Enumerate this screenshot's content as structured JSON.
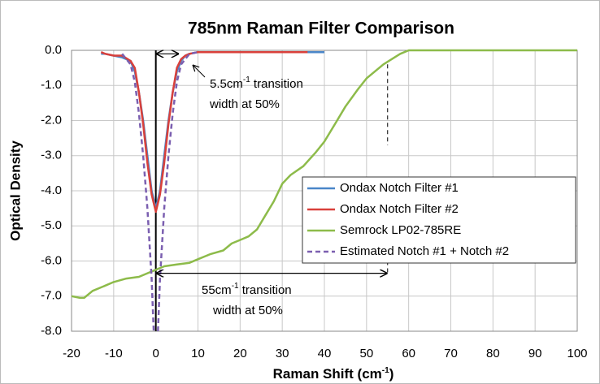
{
  "chart_data": {
    "type": "line",
    "title": "785nm Raman Filter Comparison",
    "x_label": {
      "before": "Raman Shift (cm",
      "sup": "-1",
      "after": ")"
    },
    "y_label": "Optical Density",
    "xlim": [
      -20,
      100
    ],
    "xticks": [
      -20,
      -10,
      0,
      10,
      20,
      30,
      40,
      50,
      60,
      70,
      80,
      90,
      100
    ],
    "ylim": [
      -8,
      0
    ],
    "yticks": [
      {
        "value": 0,
        "label": "0.0"
      },
      {
        "value": -1,
        "label": "-1.0"
      },
      {
        "value": -2,
        "label": "-2.0"
      },
      {
        "value": -3,
        "label": "-3.0"
      },
      {
        "value": -4,
        "label": "-4.0"
      },
      {
        "value": -5,
        "label": "-5.0"
      },
      {
        "value": -6,
        "label": "-6.0"
      },
      {
        "value": -7,
        "label": "-7.0"
      },
      {
        "value": -8,
        "label": "-8.0"
      }
    ],
    "grid": true,
    "series": [
      {
        "name": "Ondax Notch Filter #1",
        "color": "#4a86c8",
        "dashed": false,
        "x": [
          -13,
          -12,
          -10,
          -8,
          -6,
          -5,
          -4,
          -3,
          -2,
          -1,
          0,
          1,
          2,
          3,
          4,
          5,
          6,
          7,
          8,
          10,
          15,
          20,
          30,
          40
        ],
        "values": [
          -0.1,
          -0.1,
          -0.15,
          -0.2,
          -0.3,
          -0.6,
          -1.2,
          -2.0,
          -3.0,
          -4.0,
          -4.5,
          -4.0,
          -3.0,
          -2.0,
          -1.2,
          -0.6,
          -0.3,
          -0.15,
          -0.1,
          -0.05,
          -0.05,
          -0.05,
          -0.05,
          -0.05
        ]
      },
      {
        "name": "Ondax Notch Filter #2",
        "color": "#d9403b",
        "dashed": false,
        "x": [
          -13,
          -12,
          -10,
          -8,
          -6,
          -5,
          -4,
          -3,
          -2,
          -1,
          0,
          1,
          2,
          3,
          4,
          5,
          6,
          7,
          8,
          10,
          15,
          20,
          30,
          36
        ],
        "values": [
          -0.05,
          -0.1,
          -0.15,
          -0.15,
          -0.3,
          -0.5,
          -1.2,
          -2.1,
          -3.2,
          -4.1,
          -4.6,
          -4.1,
          -3.2,
          -2.1,
          -1.2,
          -0.5,
          -0.25,
          -0.15,
          -0.1,
          -0.05,
          -0.05,
          -0.05,
          -0.05,
          -0.05
        ]
      },
      {
        "name": "Semrock LP02-785RE",
        "color": "#8dbb4a",
        "dashed": false,
        "x": [
          -20,
          -18,
          -17,
          -15,
          -12,
          -10,
          -7,
          -4,
          -2,
          0,
          2,
          5,
          8,
          10,
          13,
          16,
          18,
          20,
          22,
          24,
          26,
          28,
          30,
          32,
          35,
          38,
          40,
          43,
          45,
          48,
          50,
          52,
          54,
          56,
          58,
          60,
          70,
          80,
          90,
          100
        ],
        "values": [
          -7.0,
          -7.05,
          -7.05,
          -6.85,
          -6.7,
          -6.6,
          -6.5,
          -6.45,
          -6.35,
          -6.25,
          -6.15,
          -6.1,
          -6.05,
          -5.95,
          -5.8,
          -5.7,
          -5.5,
          -5.4,
          -5.3,
          -5.1,
          -4.7,
          -4.3,
          -3.8,
          -3.55,
          -3.3,
          -2.9,
          -2.6,
          -2.0,
          -1.6,
          -1.1,
          -0.8,
          -0.6,
          -0.4,
          -0.25,
          -0.1,
          0,
          0,
          0,
          0,
          0
        ]
      },
      {
        "name": "Estimated Notch #1 + Notch #2",
        "color": "#7b5fb0",
        "dashed": true,
        "x": [
          -8,
          -6,
          -5,
          -4,
          -3,
          -2,
          -1,
          -0.5,
          0,
          0.5,
          1,
          2,
          3,
          4,
          5,
          6,
          8,
          10
        ],
        "values": [
          -0.1,
          -0.4,
          -0.9,
          -1.8,
          -3.0,
          -4.5,
          -6.5,
          -8.0,
          null,
          -8.0,
          -6.5,
          -4.5,
          -3.0,
          -1.8,
          -0.9,
          -0.4,
          -0.1,
          -0.05
        ]
      }
    ],
    "legend": "lower right",
    "zero_line": 0,
    "annotations": [
      {
        "before": "5.5cm",
        "sup": "-1",
        "after": " transition",
        "line2": "width at 50%",
        "arrow_x": [
          0,
          5.5
        ],
        "arrow_y": -0.1
      },
      {
        "before": "55cm",
        "sup": "-1",
        "after": " transition",
        "line2": "width at 50%",
        "arrow_x": [
          0,
          55
        ],
        "arrow_y": -6.35,
        "dash_y": [
          [
            -0.4,
            -2.7
          ],
          [
            -6.0,
            -6.35
          ]
        ]
      }
    ]
  }
}
